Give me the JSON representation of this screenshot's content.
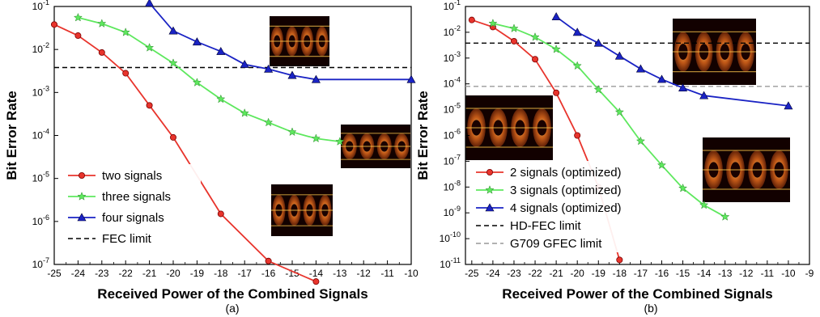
{
  "chart_data": [
    {
      "type": "line",
      "panel_label": "(a)",
      "xlabel": "Received Power of the Combined Signals",
      "ylabel": "Bit Error Rate",
      "xlim": [
        -25,
        -10
      ],
      "ylim": [
        1e-07,
        0.1
      ],
      "y_scale": "log",
      "x_ticks": [
        "-25",
        "-24",
        "-23",
        "-22",
        "-21",
        "-20",
        "-19",
        "-18",
        "-17",
        "-16",
        "-15",
        "-14",
        "-13",
        "-12",
        "-11",
        "-10"
      ],
      "y_ticks": [
        {
          "base": "10",
          "exp": "-1"
        },
        {
          "base": "10",
          "exp": "-2"
        },
        {
          "base": "10",
          "exp": "-3"
        },
        {
          "base": "10",
          "exp": "-4"
        },
        {
          "base": "10",
          "exp": "-5"
        },
        {
          "base": "10",
          "exp": "-6"
        },
        {
          "base": "10",
          "exp": "-7"
        }
      ],
      "legend_position": "bottom-left",
      "series": [
        {
          "name": "two signals",
          "color": "#e8342c",
          "marker": "circle",
          "x": [
            -25,
            -24,
            -23,
            -22,
            -21,
            -20,
            -18,
            -16,
            -14
          ],
          "y": [
            0.038,
            0.021,
            0.0085,
            0.0028,
            0.0005,
            9e-05,
            1.5e-06,
            1.2e-07,
            4e-08
          ]
        },
        {
          "name": "three signals",
          "color": "#5ee85e",
          "marker": "star",
          "x": [
            -24,
            -23,
            -22,
            -21,
            -20,
            -19,
            -18,
            -17,
            -16,
            -15,
            -14,
            -13
          ],
          "y": [
            0.055,
            0.04,
            0.025,
            0.011,
            0.0048,
            0.0017,
            0.0007,
            0.00033,
            0.0002,
            0.00012,
            8.5e-05,
            7.2e-05
          ]
        },
        {
          "name": "four signals",
          "color": "#1a23c4",
          "marker": "triangle",
          "x": [
            -21,
            -20,
            -19,
            -18,
            -17,
            -16,
            -15,
            -14,
            -10
          ],
          "y": [
            0.12,
            0.027,
            0.015,
            0.009,
            0.0045,
            0.0035,
            0.0025,
            0.002,
            0.002
          ]
        }
      ],
      "reference_lines": [
        {
          "name": "FEC limit",
          "y": 0.0038,
          "color": "#000000",
          "dash": "dashed"
        }
      ]
    },
    {
      "type": "line",
      "panel_label": "(b)",
      "xlabel": "Received Power of the Combined Signals",
      "ylabel": "Bit Error Rate",
      "xlim": [
        -25.3,
        -9
      ],
      "ylim": [
        1e-11,
        0.1
      ],
      "y_scale": "log",
      "x_ticks": [
        "-25",
        "-24",
        "-23",
        "-22",
        "-21",
        "-20",
        "-19",
        "-18",
        "-17",
        "-16",
        "-15",
        "-14",
        "-13",
        "-12",
        "-11",
        "-10",
        "-9"
      ],
      "y_ticks": [
        {
          "base": "10",
          "exp": "-1"
        },
        {
          "base": "10",
          "exp": "-2"
        },
        {
          "base": "10",
          "exp": "-3"
        },
        {
          "base": "10",
          "exp": "-4"
        },
        {
          "base": "10",
          "exp": "-5"
        },
        {
          "base": "10",
          "exp": "-6"
        },
        {
          "base": "10",
          "exp": "-7"
        },
        {
          "base": "10",
          "exp": "-8"
        },
        {
          "base": "10",
          "exp": "-9"
        },
        {
          "base": "10",
          "exp": "-10"
        },
        {
          "base": "10",
          "exp": "-11"
        }
      ],
      "legend_position": "bottom-left",
      "series": [
        {
          "name": "2 signals (optimized)",
          "color": "#e8342c",
          "marker": "circle",
          "x": [
            -25,
            -24,
            -23,
            -22,
            -21,
            -20,
            -19,
            -18
          ],
          "y": [
            0.03,
            0.016,
            0.0045,
            0.0009,
            4.5e-05,
            1e-06,
            1e-08,
            1.5e-11
          ]
        },
        {
          "name": "3 signals (optimized)",
          "color": "#5ee85e",
          "marker": "star",
          "x": [
            -24,
            -23,
            -22,
            -21,
            -20,
            -19,
            -18,
            -17,
            -16,
            -15,
            -14,
            -13
          ],
          "y": [
            0.022,
            0.014,
            0.0065,
            0.0022,
            0.0005,
            6e-05,
            8e-06,
            6e-07,
            7e-08,
            9e-09,
            2e-09,
            7e-10
          ]
        },
        {
          "name": "4 signals (optimized)",
          "color": "#1a23c4",
          "marker": "triangle",
          "x": [
            -21,
            -20,
            -19,
            -18,
            -17,
            -16,
            -15,
            -14,
            -10
          ],
          "y": [
            0.04,
            0.01,
            0.0038,
            0.0012,
            0.00038,
            0.00015,
            7e-05,
            3.5e-05,
            1.4e-05
          ]
        }
      ],
      "reference_lines": [
        {
          "name": "HD-FEC limit",
          "y": 0.0038,
          "color": "#000000",
          "dash": "dashed"
        },
        {
          "name": "G709 GFEC limit",
          "y": 8e-05,
          "color": "#999999",
          "dash": "dashed"
        }
      ]
    }
  ],
  "eye_diagrams": {
    "a": [
      "eye-diagram-four-signals",
      "eye-diagram-three-signals",
      "eye-diagram-two-signals"
    ],
    "b": [
      "eye-diagram-four-signals",
      "eye-diagram-two-signals",
      "eye-diagram-three-signals"
    ]
  }
}
